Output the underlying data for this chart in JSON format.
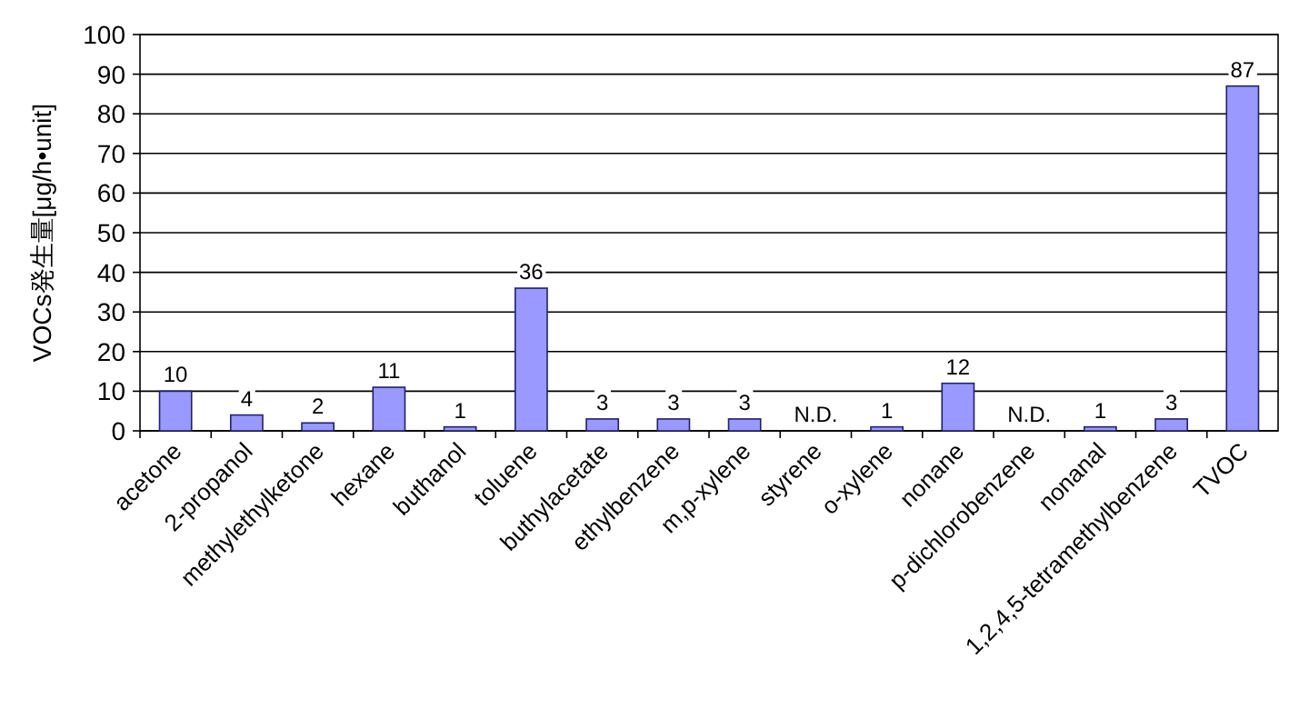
{
  "chart_data": {
    "type": "bar",
    "ylabel": "VOCs発生量[μg/h•unit]",
    "categories": [
      "acetone",
      "2-propanol",
      "methylethylketone",
      "hexane",
      "buthanol",
      "toluene",
      "buthylacetate",
      "ethylbenzene",
      "m,p-xylene",
      "styrene",
      "o-xylene",
      "nonane",
      "p-dichlorobenzene",
      "nonanal",
      "1,2,4,5-tetramethylbenzene",
      "TVOC"
    ],
    "values": [
      10,
      4,
      2,
      11,
      1,
      36,
      3,
      3,
      3,
      null,
      1,
      12,
      null,
      1,
      3,
      87
    ],
    "value_labels": [
      "10",
      "4",
      "2",
      "11",
      "1",
      "36",
      "3",
      "3",
      "3",
      "N.D.",
      "1",
      "12",
      "N.D.",
      "1",
      "3",
      "87"
    ],
    "color": "#9999ff",
    "ylim": [
      0,
      100
    ],
    "yticks": [
      0,
      10,
      20,
      30,
      40,
      50,
      60,
      70,
      80,
      90,
      100
    ],
    "grid": "y"
  }
}
